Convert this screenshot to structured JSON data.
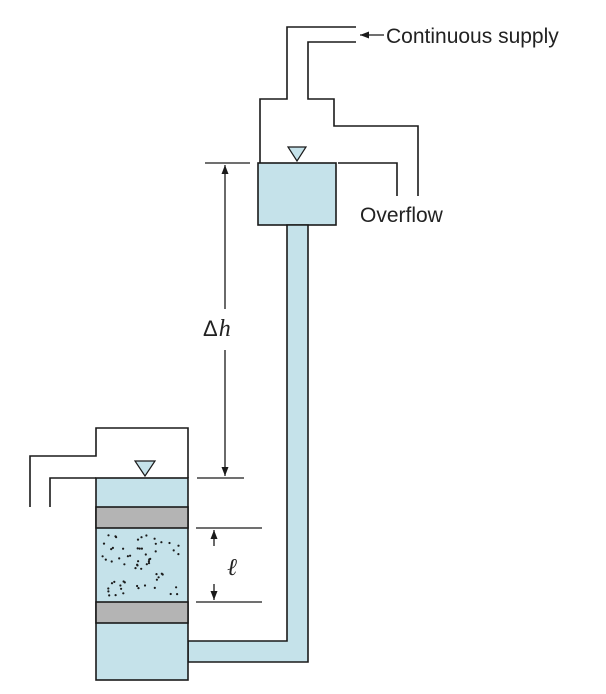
{
  "labels": {
    "supply": "Continuous supply",
    "overflow": "Overflow",
    "head_symbol": "Δ",
    "head_var": "h",
    "length_var": "ℓ"
  },
  "colors": {
    "water": "#c5e2ea",
    "screen": "#b4b4b4",
    "line": "#1a1a1a"
  },
  "icons": {
    "water_level": "inverted-triangle"
  }
}
